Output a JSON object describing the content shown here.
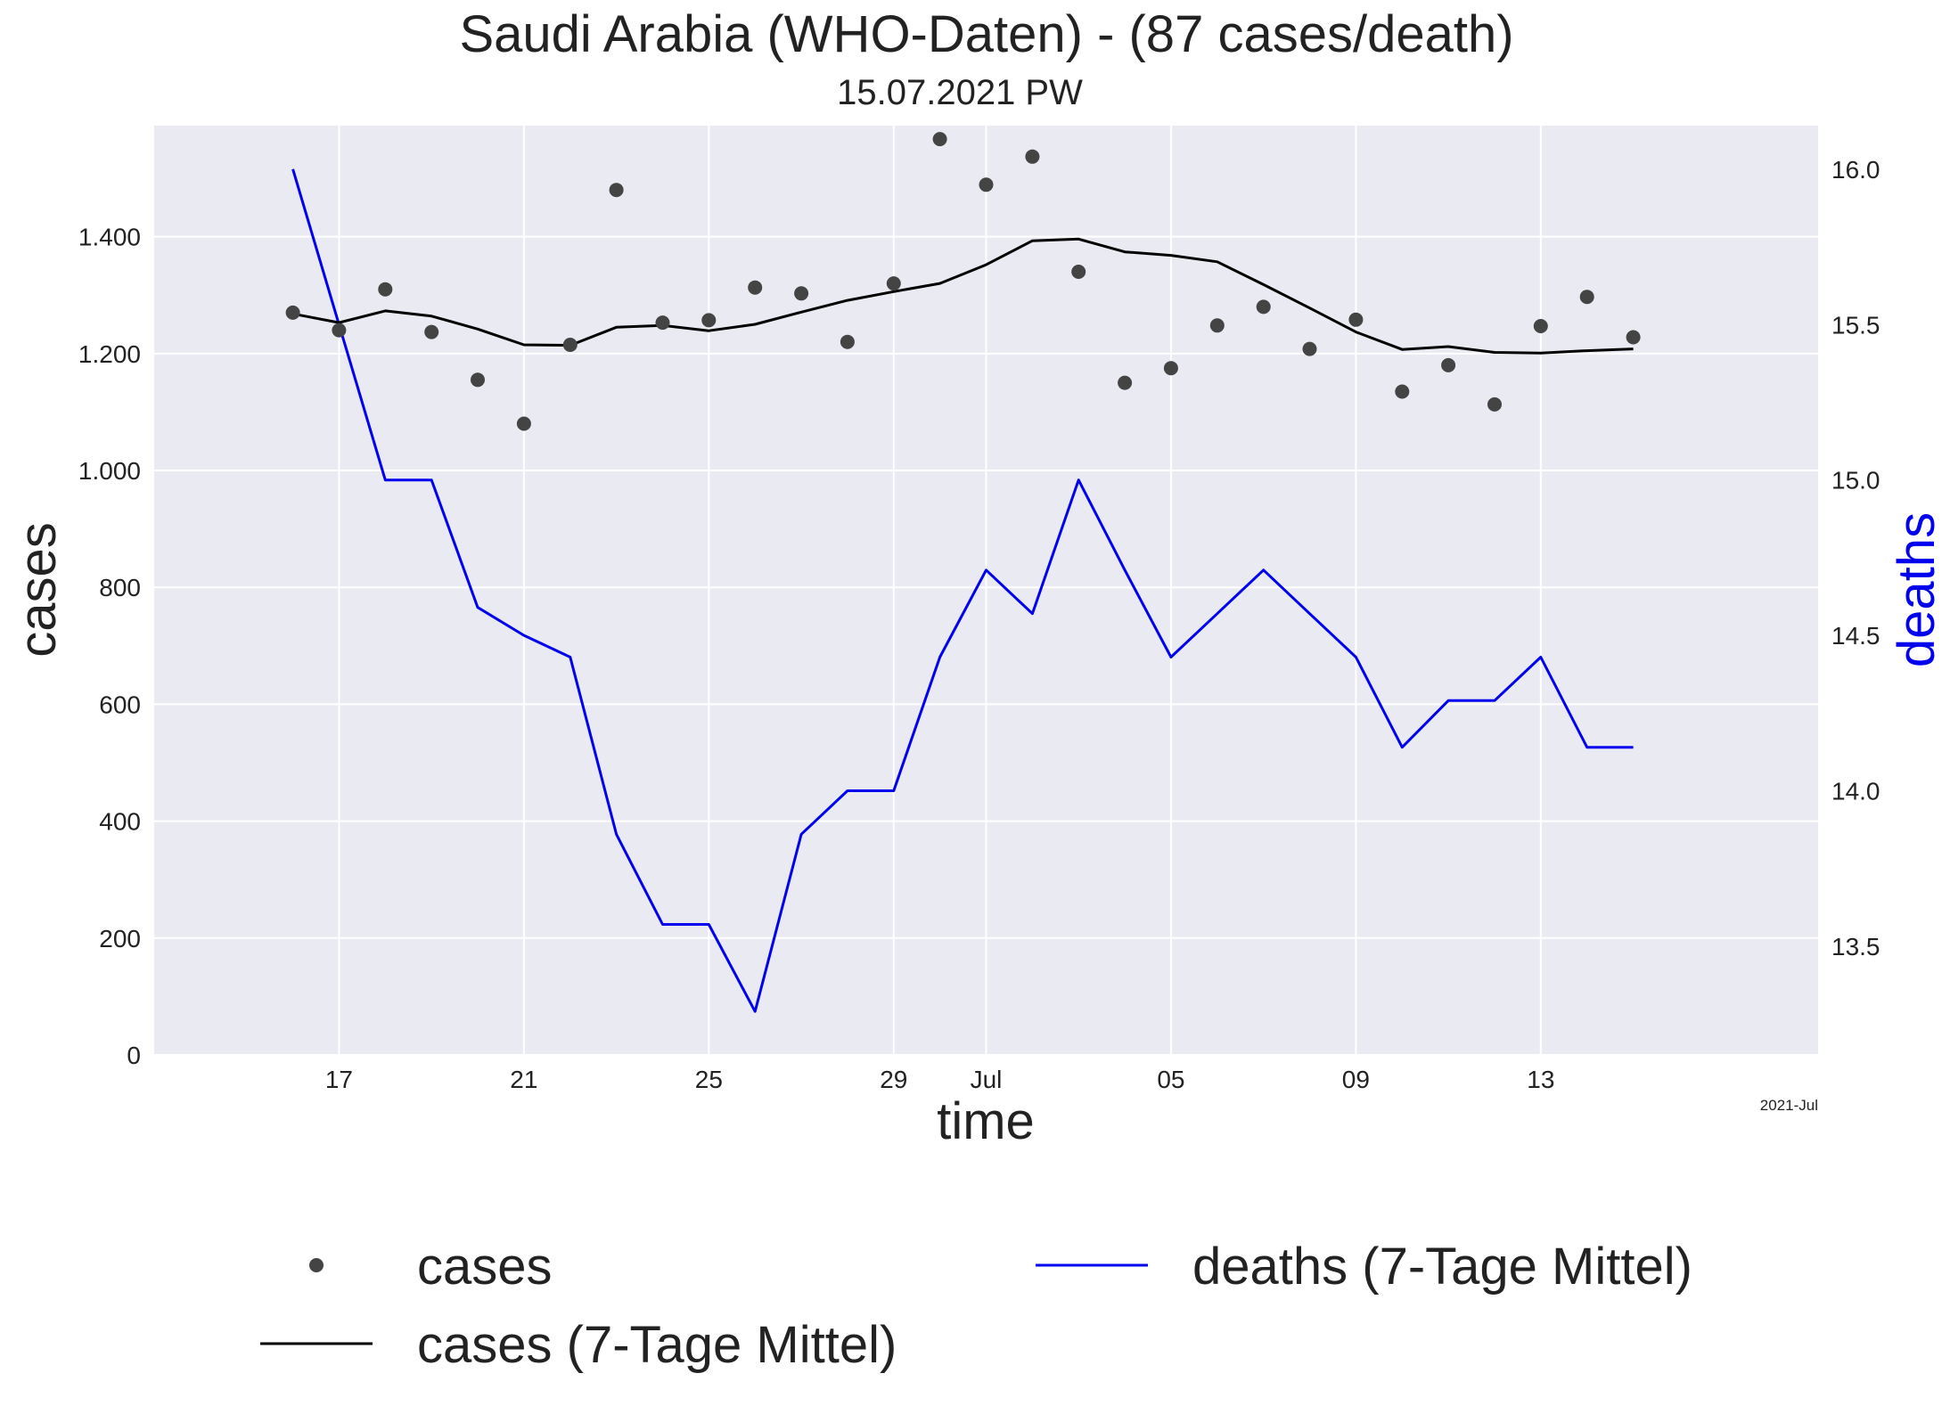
{
  "chart_data": {
    "type": "line",
    "title": "Saudi Arabia (WHO-Daten) - (87 cases/death)",
    "subtitle": "15.07.2021 PW",
    "xlabel": "time",
    "ylabel": "cases",
    "y2label": "deaths",
    "x_offset_label": "2021-Jul",
    "x": [
      "2021-06-16",
      "2021-06-17",
      "2021-06-18",
      "2021-06-19",
      "2021-06-20",
      "2021-06-21",
      "2021-06-22",
      "2021-06-23",
      "2021-06-24",
      "2021-06-25",
      "2021-06-26",
      "2021-06-27",
      "2021-06-28",
      "2021-06-29",
      "2021-06-30",
      "2021-07-01",
      "2021-07-02",
      "2021-07-03",
      "2021-07-04",
      "2021-07-05",
      "2021-07-06",
      "2021-07-07",
      "2021-07-08",
      "2021-07-09",
      "2021-07-10",
      "2021-07-11",
      "2021-07-12",
      "2021-07-13",
      "2021-07-14",
      "2021-07-15"
    ],
    "xlim": [
      "2021-06-13",
      "2021-07-19"
    ],
    "x_ticks": [
      {
        "date": "2021-06-17",
        "label": "17"
      },
      {
        "date": "2021-06-21",
        "label": "21"
      },
      {
        "date": "2021-06-25",
        "label": "25"
      },
      {
        "date": "2021-06-29",
        "label": "29"
      },
      {
        "date": "2021-07-01",
        "label": "Jul"
      },
      {
        "date": "2021-07-05",
        "label": "05"
      },
      {
        "date": "2021-07-09",
        "label": "09"
      },
      {
        "date": "2021-07-13",
        "label": "13"
      }
    ],
    "ylim": [
      0,
      1590
    ],
    "y_ticks": [
      {
        "value": 0,
        "label": "0"
      },
      {
        "value": 200,
        "label": "200"
      },
      {
        "value": 400,
        "label": "400"
      },
      {
        "value": 600,
        "label": "600"
      },
      {
        "value": 800,
        "label": "800"
      },
      {
        "value": 1000,
        "label": "1.000"
      },
      {
        "value": 1200,
        "label": "1.200"
      },
      {
        "value": 1400,
        "label": "1.400"
      }
    ],
    "y2lim": [
      13.15,
      16.14
    ],
    "y2_ticks": [
      {
        "value": 13.5,
        "label": "13.5"
      },
      {
        "value": 14.0,
        "label": "14.0"
      },
      {
        "value": 14.5,
        "label": "14.5"
      },
      {
        "value": 15.0,
        "label": "15.0"
      },
      {
        "value": 15.5,
        "label": "15.5"
      },
      {
        "value": 16.0,
        "label": "16.0"
      }
    ],
    "grid": true,
    "legend_placement": "below",
    "series": [
      {
        "name": "cases",
        "kind": "scatter",
        "axis": "left",
        "color": "#444444",
        "values": [
          1270,
          1240,
          1310,
          1237,
          1155,
          1080,
          1215,
          1480,
          1253,
          1257,
          1313,
          1303,
          1220,
          1320,
          1567,
          1489,
          1537,
          1340,
          1150,
          1175,
          1248,
          1280,
          1208,
          1258,
          1135,
          1180,
          1113,
          1247,
          1297,
          1228
        ]
      },
      {
        "name": "cases (7-Tage Mittel)",
        "kind": "line",
        "axis": "left",
        "color": "#000000",
        "values": [
          1268,
          1253,
          1273,
          1264,
          1242,
          1215,
          1214,
          1245,
          1248,
          1239,
          1250,
          1271,
          1291,
          1306,
          1320,
          1352,
          1393,
          1396,
          1374,
          1368,
          1357,
          1318,
          1278,
          1237,
          1207,
          1212,
          1202,
          1201,
          1205,
          1208
        ]
      },
      {
        "name": "deaths (7-Tage Mittel)",
        "kind": "line",
        "axis": "right",
        "color": "#0000ee",
        "values": [
          16.0,
          15.5,
          15.0,
          15.0,
          14.59,
          14.5,
          14.43,
          13.86,
          13.57,
          13.57,
          13.29,
          13.86,
          14.0,
          14.0,
          14.43,
          14.71,
          14.57,
          15.0,
          14.71,
          14.43,
          14.57,
          14.71,
          14.57,
          14.43,
          14.14,
          14.29,
          14.29,
          14.43,
          14.14,
          14.14
        ]
      }
    ]
  }
}
